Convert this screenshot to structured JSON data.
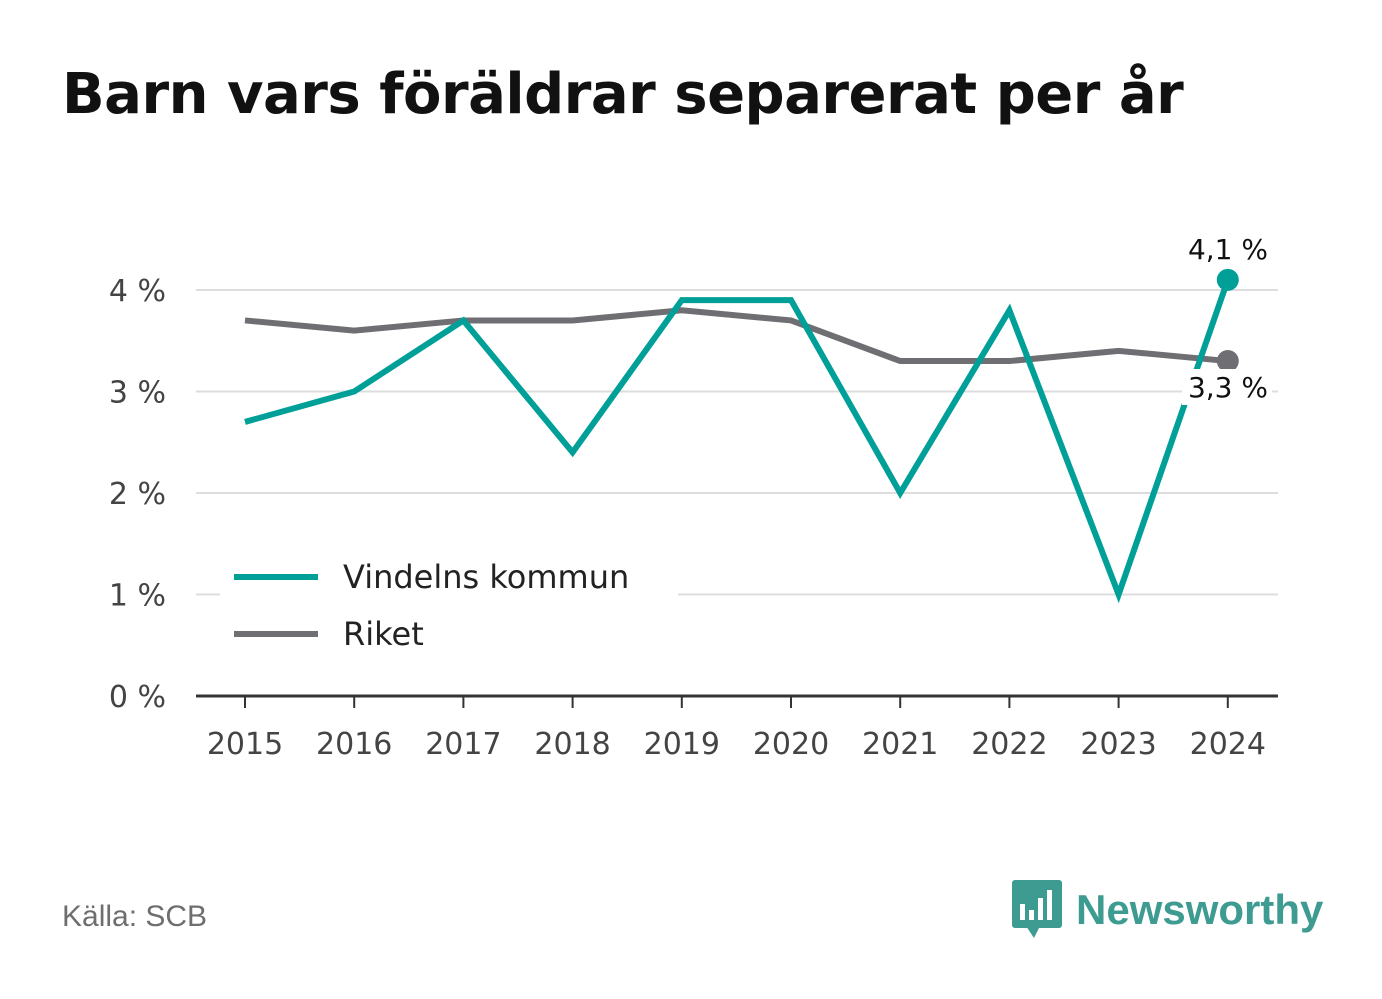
{
  "title": "Barn vars föräldrar separerat per år",
  "source": "Källa: SCB",
  "brand": {
    "name": "Newsworthy",
    "icon": "newsworthy-logo-icon",
    "color": "#3e9b91"
  },
  "colors": {
    "vindeln": "#00a098",
    "riket": "#6f6e72",
    "grid": "#dddddd",
    "axis": "#333333",
    "tick_text": "#444444"
  },
  "chart_data": {
    "type": "line",
    "x": [
      "2015",
      "2016",
      "2017",
      "2018",
      "2019",
      "2020",
      "2021",
      "2022",
      "2023",
      "2024"
    ],
    "yticks": [
      0,
      1,
      2,
      3,
      4
    ],
    "ytick_labels": [
      "0 %",
      "1 %",
      "2 %",
      "3 %",
      "4 %"
    ],
    "ylim": [
      0,
      4.2
    ],
    "grid": true,
    "legend_position": "bottom-left",
    "series": [
      {
        "name": "Vindelns kommun",
        "color": "#00a098",
        "values": [
          2.7,
          3.0,
          3.7,
          2.4,
          3.9,
          3.9,
          2.0,
          3.8,
          1.0,
          4.1
        ],
        "end_label": "4,1 %"
      },
      {
        "name": "Riket",
        "color": "#6f6e72",
        "values": [
          3.7,
          3.6,
          3.7,
          3.7,
          3.8,
          3.7,
          3.3,
          3.3,
          3.4,
          3.3
        ],
        "end_label": "3,3 %"
      }
    ]
  }
}
